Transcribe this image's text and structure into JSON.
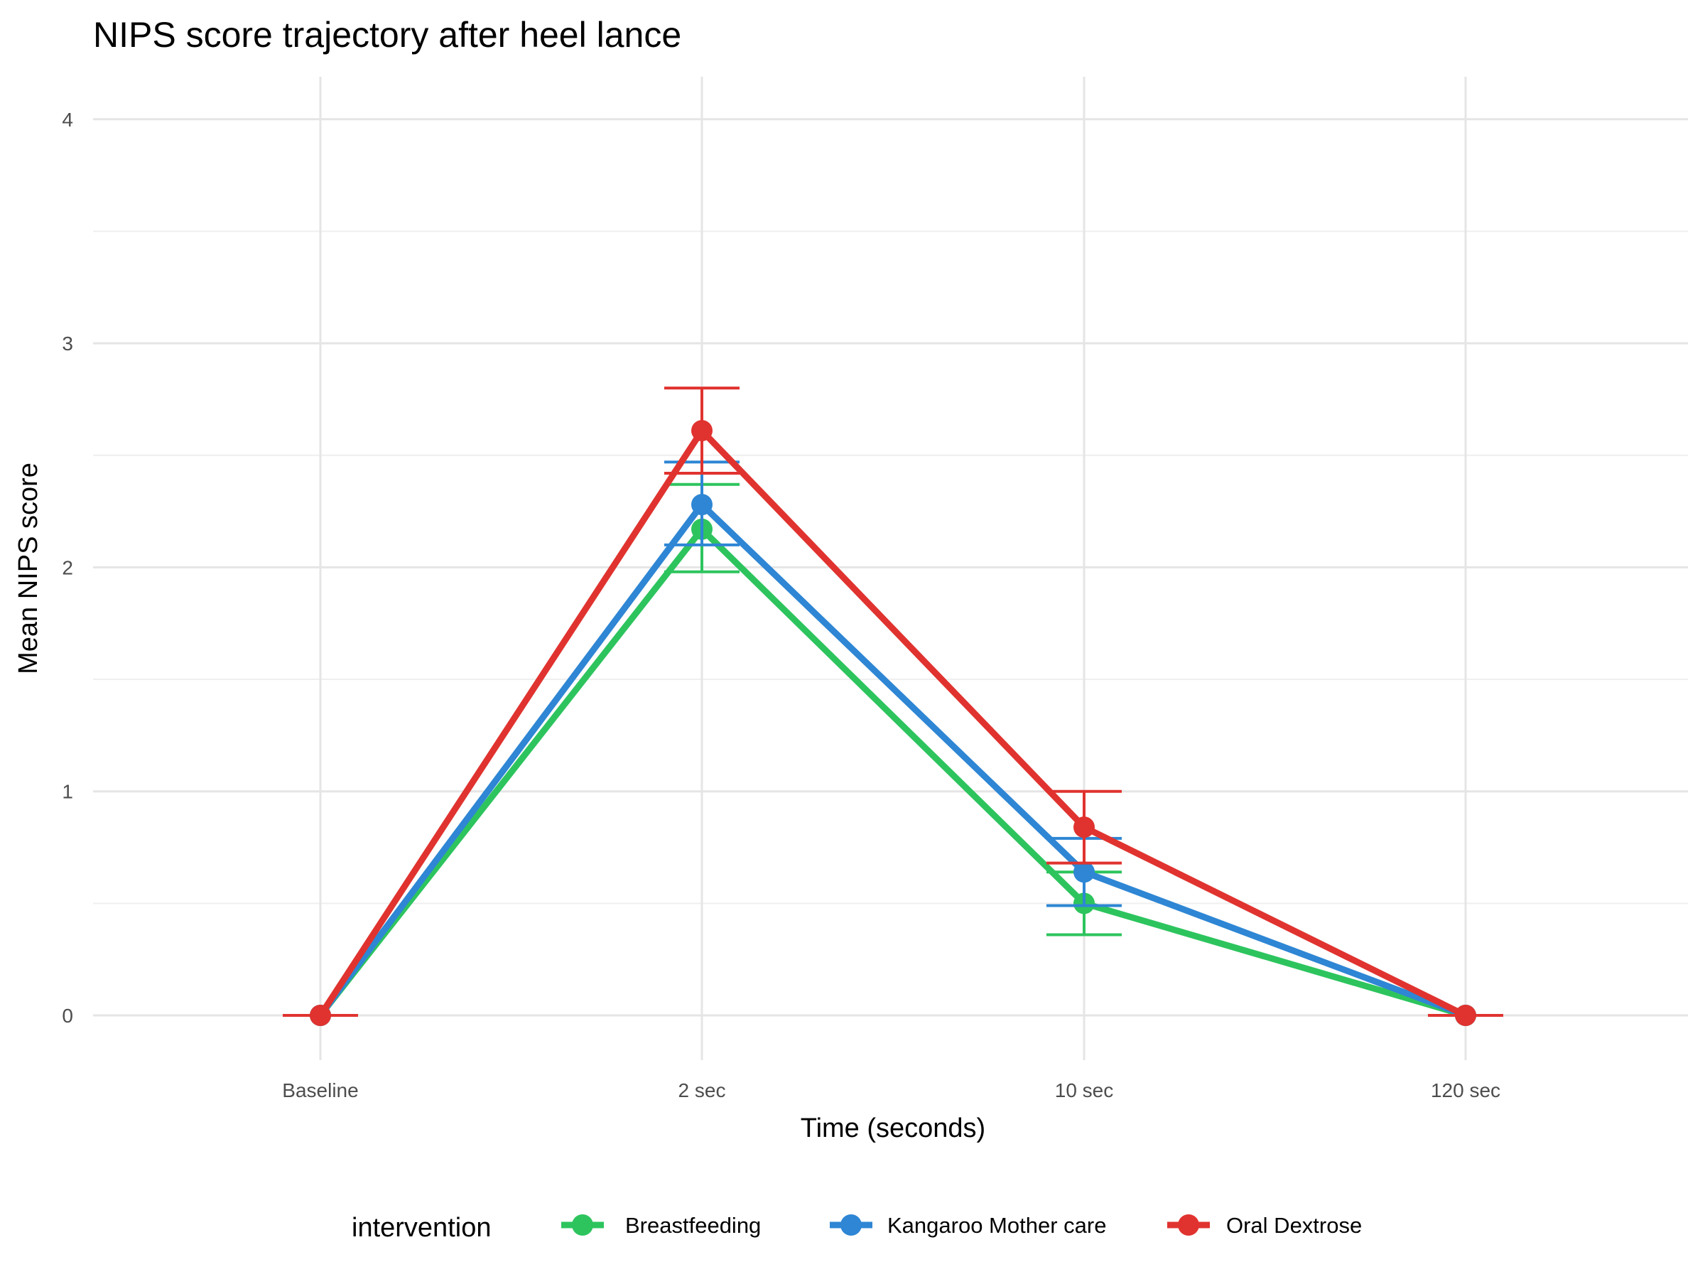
{
  "chart_data": {
    "type": "line",
    "title": "NIPS score trajectory after heel lance",
    "xlabel": "Time (seconds)",
    "ylabel": "Mean NIPS score",
    "categories": [
      "Baseline",
      "2 sec",
      "10 sec",
      "120 sec"
    ],
    "ylim": [
      -0.2,
      4.2
    ],
    "yticks": [
      "0",
      "1",
      "2",
      "3",
      "4"
    ],
    "grid": true,
    "legend": {
      "title": "intervention",
      "position": "bottom"
    },
    "series": [
      {
        "name": "Breastfeeding",
        "color": "#2dc45e",
        "values": [
          0,
          2.17,
          0.5,
          0
        ],
        "lower": [
          0,
          1.98,
          0.36,
          0
        ],
        "upper": [
          0,
          2.37,
          0.64,
          0
        ]
      },
      {
        "name": "Kangaroo Mother care",
        "color": "#2e86d4",
        "values": [
          0,
          2.28,
          0.64,
          0
        ],
        "lower": [
          0,
          2.1,
          0.49,
          0
        ],
        "upper": [
          0,
          2.47,
          0.79,
          0
        ]
      },
      {
        "name": "Oral Dextrose",
        "color": "#e0332f",
        "values": [
          0,
          2.61,
          0.84,
          0
        ],
        "lower": [
          0,
          2.42,
          0.68,
          0
        ],
        "upper": [
          0,
          2.8,
          1.0,
          0
        ]
      }
    ]
  }
}
